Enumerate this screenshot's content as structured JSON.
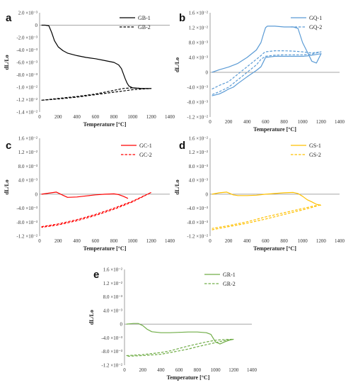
{
  "chart_data": [
    {
      "type": "line",
      "panel_label": "a",
      "xlabel": "Temperature [°C]",
      "ylabel": "dL/Lo",
      "xlim": [
        0,
        1400
      ],
      "ylim": [
        -0.014,
        0.002
      ],
      "xticks": [
        0,
        200,
        400,
        600,
        800,
        1000,
        1200,
        1400
      ],
      "yticks": [
        0.002,
        0,
        -0.002,
        -0.004,
        -0.006,
        -0.008,
        -0.01,
        -0.012,
        -0.014
      ],
      "ytick_labels": [
        "2.0 ×10⁻³",
        "0",
        "-2.0 ×10⁻³",
        "-4.0 ×10⁻³",
        "-6.0 ×10⁻³",
        "-8.0 ×10⁻³",
        "-1.0 ×10⁻²",
        "-1.2 ×10⁻²",
        "-1.4 ×10⁻²"
      ],
      "grid": false,
      "legend": "top-right",
      "series": [
        {
          "name": "GB-1",
          "color": "#000000",
          "dash": "solid",
          "x": [
            20,
            60,
            100,
            130,
            160,
            200,
            250,
            300,
            400,
            500,
            600,
            700,
            800,
            850,
            880,
            900,
            920,
            940,
            960,
            1000,
            1100,
            1200
          ],
          "y": [
            0,
            0,
            -0.0001,
            -0.0012,
            -0.0025,
            -0.0035,
            -0.0041,
            -0.0045,
            -0.0049,
            -0.0052,
            -0.0054,
            -0.0057,
            -0.006,
            -0.0064,
            -0.007,
            -0.0078,
            -0.0086,
            -0.0093,
            -0.0098,
            -0.0101,
            -0.0102,
            -0.0102
          ]
        },
        {
          "name": "GB-2",
          "color": "#000000",
          "dash": "dashed",
          "x": [
            20,
            200,
            400,
            600,
            800,
            900,
            1000,
            1100,
            1200,
            1100,
            1000,
            900,
            800,
            600,
            400,
            200,
            20
          ],
          "y": [
            -0.0121,
            -0.0118,
            -0.0115,
            -0.0111,
            -0.0105,
            -0.0102,
            -0.0101,
            -0.0102,
            -0.0102,
            -0.0103,
            -0.0104,
            -0.0106,
            -0.0108,
            -0.0112,
            -0.0116,
            -0.0119,
            -0.0121
          ]
        }
      ]
    },
    {
      "type": "line",
      "panel_label": "b",
      "xlabel": "Temperature [°C]",
      "ylabel": "dL/Lo",
      "xlim": [
        0,
        1400
      ],
      "ylim": [
        -0.012,
        0.016
      ],
      "xticks": [
        0,
        200,
        400,
        600,
        800,
        1000,
        1200,
        1400
      ],
      "yticks": [
        0.016,
        0.012,
        0.008,
        0.004,
        0,
        -0.004,
        -0.008,
        -0.012
      ],
      "ytick_labels": [
        "1.6 ×10⁻²",
        "1.2 ×10⁻²",
        "8.0 ×10⁻³",
        "4.0 ×10⁻³",
        "0",
        "-4.0 ×10⁻³",
        "-8.0 ×10⁻³",
        "-1.2 ×10⁻²"
      ],
      "grid": false,
      "legend": "top-right",
      "series": [
        {
          "name": "GQ-1",
          "color": "#5B9BD5",
          "dash": "solid",
          "x": [
            20,
            100,
            200,
            300,
            400,
            500,
            550,
            580,
            600,
            620,
            700,
            800,
            900,
            950,
            1000,
            1050,
            1100,
            1150,
            1200,
            1150,
            1100,
            1050,
            1000,
            900,
            800,
            700,
            600,
            580,
            550,
            500,
            400,
            300,
            250,
            200,
            150,
            100,
            20
          ],
          "y": [
            0,
            0.0007,
            0.0014,
            0.0024,
            0.004,
            0.006,
            0.008,
            0.0105,
            0.012,
            0.0124,
            0.0124,
            0.0122,
            0.0122,
            0.0118,
            0.008,
            0.0055,
            0.003,
            0.0025,
            0.005,
            0.0048,
            0.0046,
            0.0044,
            0.0043,
            0.0043,
            0.0043,
            0.0043,
            0.004,
            0.003,
            0.0015,
            0.0005,
            -0.0012,
            -0.003,
            -0.004,
            -0.0045,
            -0.0052,
            -0.0058,
            -0.0063
          ]
        },
        {
          "name": "GQ-2",
          "color": "#5B9BD5",
          "dash": "dashed",
          "x": [
            20,
            100,
            200,
            300,
            400,
            500,
            550,
            580,
            600,
            700,
            800,
            900,
            1000,
            1100,
            1200,
            1100,
            1000,
            900,
            800,
            700,
            600,
            550,
            500,
            400,
            300,
            200,
            100,
            20
          ],
          "y": [
            -0.0045,
            -0.0035,
            -0.0025,
            -0.0005,
            0.0015,
            0.0035,
            0.0045,
            0.0052,
            0.0055,
            0.0058,
            0.0058,
            0.0057,
            0.0055,
            0.0052,
            0.0055,
            0.0049,
            0.0047,
            0.0047,
            0.0047,
            0.0046,
            0.0043,
            0.0035,
            0.002,
            0,
            -0.002,
            -0.004,
            -0.0052,
            -0.006
          ]
        }
      ]
    },
    {
      "type": "line",
      "panel_label": "c",
      "xlabel": "Temperature [°C]",
      "ylabel": "dL/Lo",
      "xlim": [
        0,
        1400
      ],
      "ylim": [
        -0.012,
        0.016
      ],
      "xticks": [
        0,
        200,
        400,
        600,
        800,
        1000,
        1200,
        1400
      ],
      "yticks": [
        0.016,
        0.012,
        0.008,
        0.004,
        0,
        -0.004,
        -0.008,
        -0.012
      ],
      "ytick_labels": [
        "1.6 ×10⁻²",
        "1.2 ×10⁻²",
        "8.0 ×10⁻³",
        "4.0 ×10⁻³",
        "0",
        "-4.0 ×10⁻³",
        "-8.0 ×10⁻³",
        "-1.2 ×10⁻²"
      ],
      "grid": false,
      "legend": "top-right",
      "series": [
        {
          "name": "GC-1",
          "color": "#FF0000",
          "dash": "solid",
          "x": [
            20,
            100,
            180,
            250,
            300,
            400,
            500,
            600,
            700,
            800,
            850,
            900,
            950
          ],
          "y": [
            0,
            0.0003,
            0.0006,
            -0.0003,
            -0.0009,
            -0.0008,
            -0.0005,
            -0.0002,
            0,
            0.0001,
            -0.0001,
            -0.0006,
            -0.0012
          ]
        },
        {
          "name": "GC-2",
          "color": "#FF0000",
          "dash": "dashed",
          "x": [
            20,
            200,
            400,
            600,
            800,
            1000,
            1200,
            1000,
            800,
            600,
            400,
            200,
            20
          ],
          "y": [
            -0.0093,
            -0.0085,
            -0.0073,
            -0.0058,
            -0.004,
            -0.002,
            0.0005,
            -0.0022,
            -0.0043,
            -0.0061,
            -0.0076,
            -0.0088,
            -0.0095
          ]
        }
      ]
    },
    {
      "type": "line",
      "panel_label": "d",
      "xlabel": "Temperature [°C]",
      "ylabel": "dL/Lo",
      "xlim": [
        0,
        1400
      ],
      "ylim": [
        -0.012,
        0.016
      ],
      "xticks": [
        0,
        200,
        400,
        600,
        800,
        1000,
        1200,
        1400
      ],
      "yticks": [
        0.016,
        0.012,
        0.008,
        0.004,
        0,
        -0.004,
        -0.008,
        -0.012
      ],
      "ytick_labels": [
        "1.6 ×10⁻²",
        "1.2 ×10⁻²",
        "8.0 ×10⁻³",
        "4.0 ×10⁻³",
        "0",
        "-4.0 ×10⁻³",
        "-8.0 ×10⁻³",
        "-1.2 ×10⁻²"
      ],
      "grid": false,
      "legend": "top-right",
      "series": [
        {
          "name": "GS-1",
          "color": "#FFC000",
          "dash": "solid",
          "x": [
            20,
            100,
            180,
            250,
            300,
            400,
            500,
            600,
            700,
            800,
            900,
            950,
            1000,
            1050,
            1100,
            1150,
            1200
          ],
          "y": [
            0,
            0.0004,
            0.0006,
            -0.0002,
            -0.0004,
            -0.0004,
            -0.0003,
            0,
            0.0002,
            0.0004,
            0.0005,
            0.0002,
            -0.0006,
            -0.0016,
            -0.0022,
            -0.0029,
            -0.0032
          ]
        },
        {
          "name": "GS-2",
          "color": "#FFC000",
          "dash": "dashed",
          "x": [
            20,
            200,
            400,
            600,
            800,
            1000,
            1100,
            1200,
            1100,
            1000,
            800,
            600,
            400,
            200,
            20
          ],
          "y": [
            -0.0102,
            -0.0093,
            -0.0083,
            -0.0071,
            -0.0058,
            -0.0045,
            -0.0038,
            -0.003,
            -0.0035,
            -0.0041,
            -0.0053,
            -0.0065,
            -0.0079,
            -0.009,
            -0.0098
          ]
        }
      ]
    },
    {
      "type": "line",
      "panel_label": "e",
      "xlabel": "Temperature [°C]",
      "ylabel": "dL/Lo",
      "xlim": [
        0,
        1400
      ],
      "ylim": [
        -0.012,
        0.016
      ],
      "xticks": [
        0,
        200,
        400,
        600,
        800,
        1000,
        1200,
        1400
      ],
      "yticks": [
        0.016,
        0.012,
        0.008,
        0.004,
        0,
        -0.004,
        -0.008,
        -0.012
      ],
      "ytick_labels": [
        "1.6 ×10⁻²",
        "1.2 ×10⁻²",
        "8.0 ×10⁻³",
        "4.0 ×10⁻³",
        "0",
        "-4.0 ×10⁻³",
        "-8.0 ×10⁻³",
        "-1.2 ×10⁻²"
      ],
      "grid": false,
      "legend": "top-right",
      "series": [
        {
          "name": "GR-1",
          "color": "#70AD47",
          "dash": "solid",
          "x": [
            20,
            100,
            150,
            200,
            250,
            300,
            400,
            500,
            600,
            700,
            800,
            900,
            950,
            1000,
            1050,
            1100,
            1150,
            1200
          ],
          "y": [
            0,
            0.0002,
            0.0002,
            -0.0004,
            -0.0015,
            -0.0022,
            -0.0025,
            -0.0025,
            -0.0024,
            -0.0023,
            -0.0023,
            -0.0025,
            -0.003,
            -0.0052,
            -0.0058,
            -0.0052,
            -0.0047,
            -0.0044
          ]
        },
        {
          "name": "GR-2",
          "color": "#70AD47",
          "dash": "dashed",
          "x": [
            20,
            200,
            400,
            500,
            600,
            700,
            800,
            900,
            1000,
            1100,
            1200,
            1100,
            1000,
            900,
            800,
            700,
            600,
            500,
            400,
            200,
            20
          ],
          "y": [
            -0.0092,
            -0.0089,
            -0.0083,
            -0.0078,
            -0.0071,
            -0.0064,
            -0.0058,
            -0.0052,
            -0.0047,
            -0.0045,
            -0.0044,
            -0.0048,
            -0.0054,
            -0.006,
            -0.0066,
            -0.0073,
            -0.0078,
            -0.0083,
            -0.0088,
            -0.0092,
            -0.0094
          ]
        }
      ]
    }
  ]
}
